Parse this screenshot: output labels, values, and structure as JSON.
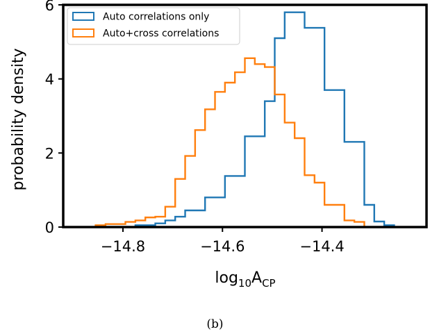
{
  "chart_data": {
    "type": "histogram",
    "xlabel_base": "log",
    "xlabel_sub": "10",
    "xlabel_main": "A",
    "xlabel_main_sub": "CP",
    "ylabel": "probability density",
    "xlim": [
      -14.92,
      -14.19
    ],
    "ylim": [
      0,
      6
    ],
    "xticks": [
      -14.8,
      -14.6,
      -14.4
    ],
    "xtick_labels": [
      "−14.8",
      "−14.6",
      "−14.4"
    ],
    "yticks": [
      0,
      2,
      4,
      6
    ],
    "ytick_labels": [
      "0",
      "2",
      "4",
      "6"
    ],
    "legend_position": "top-left",
    "series": [
      {
        "name": "Auto correlations only",
        "color": "#1f77b4",
        "bin_edges": [
          -14.775,
          -14.755,
          -14.735,
          -14.715,
          -14.695,
          -14.675,
          -14.655,
          -14.635,
          -14.615,
          -14.595,
          -14.575,
          -14.555,
          -14.535,
          -14.515,
          -14.495,
          -14.475,
          -14.455,
          -14.435,
          -14.415,
          -14.395,
          -14.375,
          -14.355,
          -14.335,
          -14.315,
          -14.295,
          -14.275,
          -14.255
        ],
        "densities": [
          0.05,
          0.05,
          0.1,
          0.18,
          0.28,
          0.45,
          0.45,
          0.8,
          0.8,
          1.38,
          1.38,
          2.45,
          2.45,
          3.4,
          5.1,
          5.8,
          5.8,
          5.38,
          5.38,
          3.7,
          3.7,
          2.3,
          2.3,
          0.6,
          0.15,
          0.05
        ]
      },
      {
        "name": "Auto+cross correlations",
        "color": "#ff7f0e",
        "bin_edges": [
          -14.855,
          -14.835,
          -14.815,
          -14.795,
          -14.775,
          -14.755,
          -14.735,
          -14.715,
          -14.695,
          -14.675,
          -14.655,
          -14.635,
          -14.615,
          -14.595,
          -14.575,
          -14.555,
          -14.535,
          -14.515,
          -14.495,
          -14.475,
          -14.455,
          -14.435,
          -14.415,
          -14.395,
          -14.375,
          -14.355,
          -14.335,
          -14.315
        ],
        "densities": [
          0.05,
          0.08,
          0.08,
          0.14,
          0.18,
          0.26,
          0.28,
          0.55,
          1.3,
          1.92,
          2.62,
          3.18,
          3.65,
          3.9,
          4.18,
          4.56,
          4.4,
          4.32,
          3.58,
          2.82,
          2.4,
          1.4,
          1.2,
          0.6,
          0.6,
          0.18,
          0.14
        ]
      }
    ]
  },
  "caption": "(b)"
}
